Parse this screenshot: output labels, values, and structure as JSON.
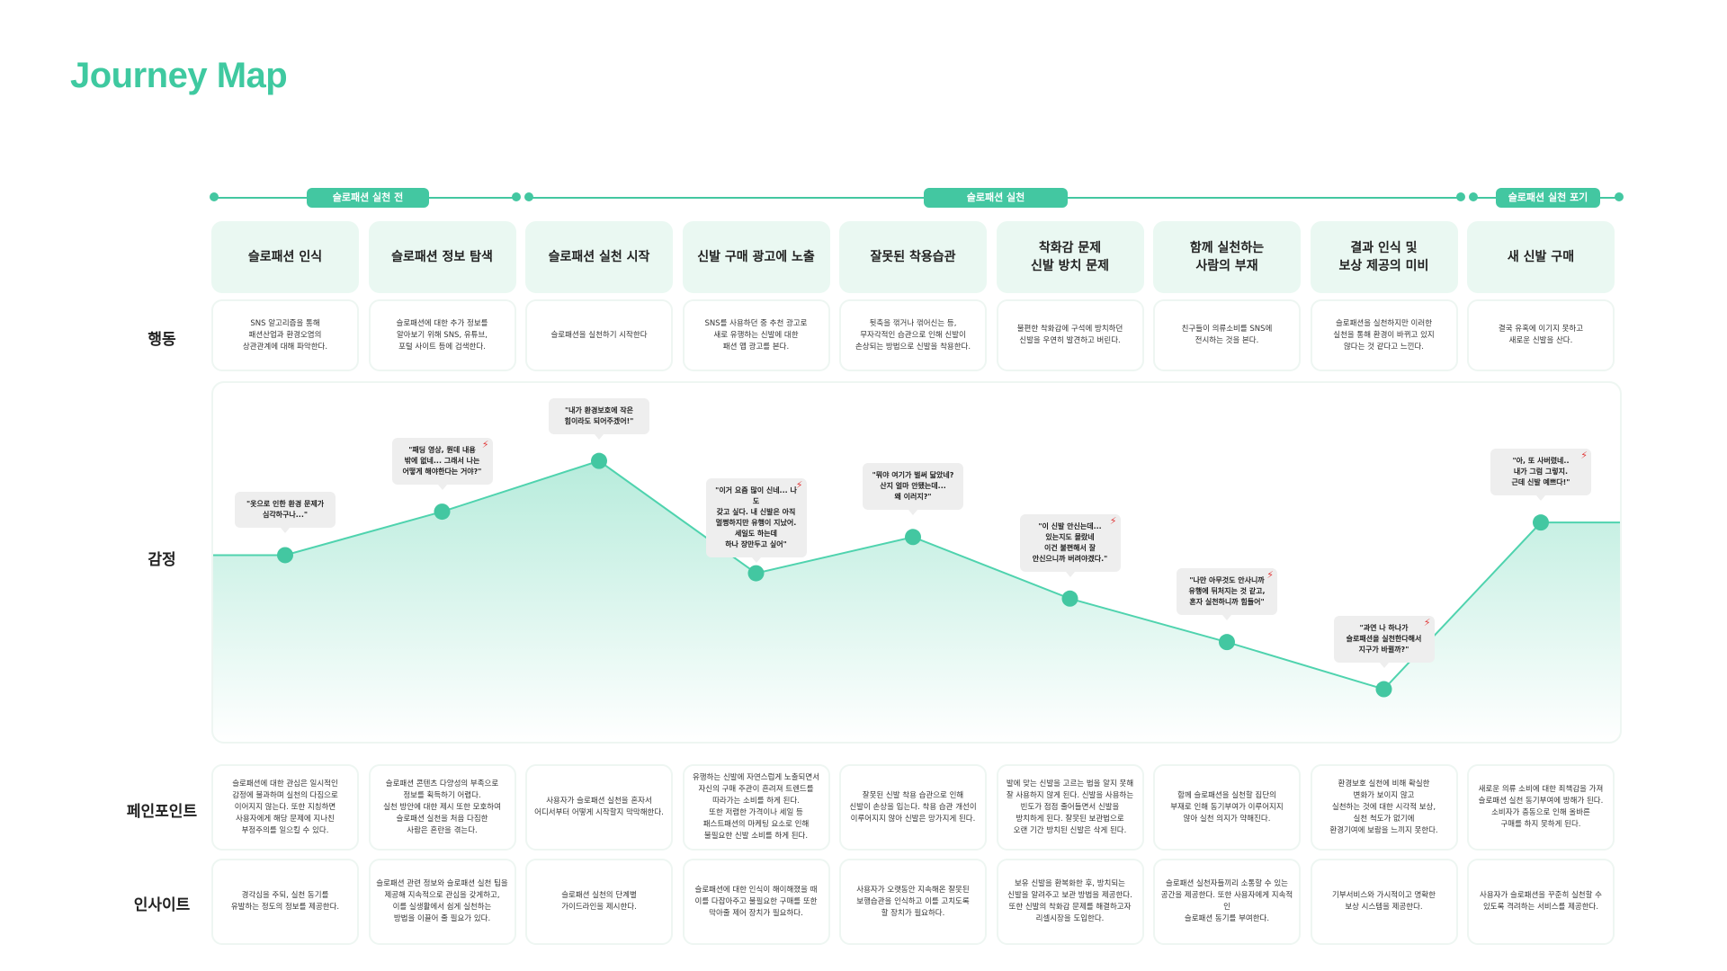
{
  "title": "Journey Map",
  "phases": [
    {
      "label": "슬로패션 실천 전"
    },
    {
      "label": "슬로패션 실천"
    },
    {
      "label": "슬로패션 실천 포기"
    }
  ],
  "row_labels": {
    "action": "행동",
    "emotion": "감정",
    "pain": "페인포인트",
    "insight": "인사이트"
  },
  "columns": [
    {
      "header": "슬로패션 인식",
      "action": "SNS 알고리즘을 통해\n패션산업과 환경오염의\n상관관계에 대해 파악한다.",
      "pain": "슬로패션에 대한 관심은 일시적인\n감정에 불과하며 실천의 다짐으로\n이어지지 않는다. 또한 지칭하면\n사용자에게 해당 문제에 지나친\n부정주의를 일으킬 수 있다.",
      "insight": "경각심을 주되, 실천 동기를\n유발하는 정도의 정보를 제공한다."
    },
    {
      "header": "슬로패션 정보 탐색",
      "action": "슬로패션에 대한 추가 정보를\n알아보기 위해 SNS, 유튜브,\n포털 사이트 등에 검색한다.",
      "pain": "슬로패션 콘텐츠 다양성의 부족으로\n정보를 획득하기 어렵다.\n실천 방안에 대한 제시 또한 모호하여\n슬로패션 실천을 처음 다짐한\n사람은 혼란을 겪는다.",
      "insight": "슬로패션 관련 정보와 슬로패션 실천 팁을\n제공해 지속적으로 관심을 갖게하고,\n이를 실생활에서 쉽게 실천하는\n방법을 이끌어 줄 필요가 있다."
    },
    {
      "header": "슬로패션 실천 시작",
      "action": "슬로패션을 실천하기 시작한다",
      "pain": "사용자가 슬로패션 실천을 혼자서\n어디서부터 어떻게 시작할지 막막해한다.",
      "insight": "슬로패션 실천의 단계별\n가이드라인을 제시한다."
    },
    {
      "header": "신발 구매 광고에 노출",
      "action": "SNS를 사용하던 중 추천 광고로\n새로 유행하는 신발에 대한\n패션 앱 광고를 본다.",
      "pain": "유행하는 신발에 자연스럽게 노출되면서\n자신의 구매 주관이 흔려져 트렌드를\n따라가는 소비를 하게 된다.\n또한 저렴한 가격이나 세일 등\n패스트패션의 마케팅 요소로 인해\n불필요한 신발 소비를 하게 된다.",
      "insight": "슬로패션에 대한 인식이 해이해졌을 때\n이를 다잡아주고 불필요한 구매를 또한\n막아줄 제어 장치가 필요하다."
    },
    {
      "header": "잘못된 착용습관",
      "action": "뒷축을 꺾거나 꺾어신는 등,\n무자각적인 습관으로 인해 신발이\n손상되는 방법으로 신발을 착용한다.",
      "pain": "잘못된 신발 착용 습관으로 인해\n신발이 손상을 입는다. 착용 습관 개선이\n이루어지지 않아 신발은 망가지게 된다.",
      "insight": "사용자가 오랫동안 지속해온 잘못된\n보행습관을 인식하고 이를 고치도록\n할 장치가 필요하다."
    },
    {
      "header": "착화감 문제\n신발 방치 문제",
      "action": "불편한 착화감에 구석에 방치하던\n신발을 우연히 발견하고 버린다.",
      "pain": "발에 맞는 신발을 고르는 법을 알지 못해\n잘 사용하지 않게 된다. 신발을 사용하는\n빈도가 점점 줄어들면서 신발을\n방치하게 된다. 잘못된 보관법으로\n오랜 기간 방치된 신발은 삭게 된다.",
      "insight": "보유 신발을 환복화한 후, 방치되는\n신발을 알려주고 보관 방법을 제공한다.\n또한 신발의 착화감 문제를 해결하고자\n리셀시장을 도입한다."
    },
    {
      "header": "함께 실천하는\n사람의 부재",
      "action": "친구들이 의류소비를 SNS에\n전시하는 것을 본다.",
      "pain": "함께 슬로패션을 실천할 집단의\n부재로 인해 동기부여가 이루어지지\n않아 실천 의지가 약해진다.",
      "insight": "슬로패션 실천자들끼리 소통할 수 있는\n공간을 제공한다. 또한 사용자에게 지속적인\n슬로패션 동기를 부여한다."
    },
    {
      "header": "결과 인식 및\n보상 제공의 미비",
      "action": "슬로패션을 실천하지만 이러한\n실천을 통해 환경이 바뀌고 있지\n않다는 것 같다고 느낀다.",
      "pain": "환경보호 실천에 비해 확실한\n변화가 보이지 않고\n실천하는 것에 대한 시각적 보상,\n실천 척도가 없기에\n환경기여에 보람을 느끼지 못한다.",
      "insight": "기부서비스와 가시적이고 명확한\n보상 시스템을 제공한다."
    },
    {
      "header": "새 신발 구매",
      "action": "결국 유혹에 이기지 못하고\n새로운 신발을 산다.",
      "pain": "새로운 의류 소비에 대한 죄책감을 가져\n슬로패션 실천 동기부여에 방해가 된다.\n소비자가 충동으로 인해 올바른\n구매를 하지 못하게 된다.",
      "insight": "사용자가 슬로패션을 꾸준히 실천할 수\n있도록 격려하는 서비스를 제공한다."
    }
  ],
  "emotion": {
    "levels": [
      0.48,
      0.36,
      0.22,
      0.53,
      0.43,
      0.6,
      0.72,
      0.85,
      0.39
    ],
    "quotes": [
      {
        "text": "\"옷으로 인한 환경 문제가\n심각하구나...\"",
        "pain": false
      },
      {
        "text": "\"패딩 영상, 뭔데 내용\n밖에 없네... 그래서 나는\n어떻게 해야한다는 거야?\"",
        "pain": true
      },
      {
        "text": "\"내가 환경보호에 작은\n힘이라도 되어주겠어!\"",
        "pain": false
      },
      {
        "text": "\"이거 요즘 많이 신네... 나도\n갖고 싶다. 내 신발은 아직\n멀쩡하지만 유행이 지났어.\n세일도 하는데\n하나 장만두고 싶어\"",
        "pain": true
      },
      {
        "text": "\"뭐야 여기가 벌써 닳았네?\n산지 얼마 안됐는데...\n왜 이러지?\"",
        "pain": false
      },
      {
        "text": "\"이 신발 안신는데...\n있는지도 몰랐네\n이건 불편해서 잘\n안신으니까 버려야겠다.\"",
        "pain": true
      },
      {
        "text": "\"나만 아무것도 안사니까\n유행에 뒤처지는 것 같고,\n혼자 실천하니까 힘들어\"",
        "pain": true
      },
      {
        "text": "\"과연 나 하나가\n슬로패션을 실천한다해서\n지구가 바뀔까?\"",
        "pain": true
      },
      {
        "text": "\"아, 또 사버렸네..\n내가 그럼 그렇지.\n근데 신발 예쁘다!\"",
        "pain": true
      }
    ],
    "line_color": "#4fd3ae",
    "fill_color": "#7ddcbf",
    "bolt_color": "#e23b3b",
    "accent": "#43c7a1"
  }
}
